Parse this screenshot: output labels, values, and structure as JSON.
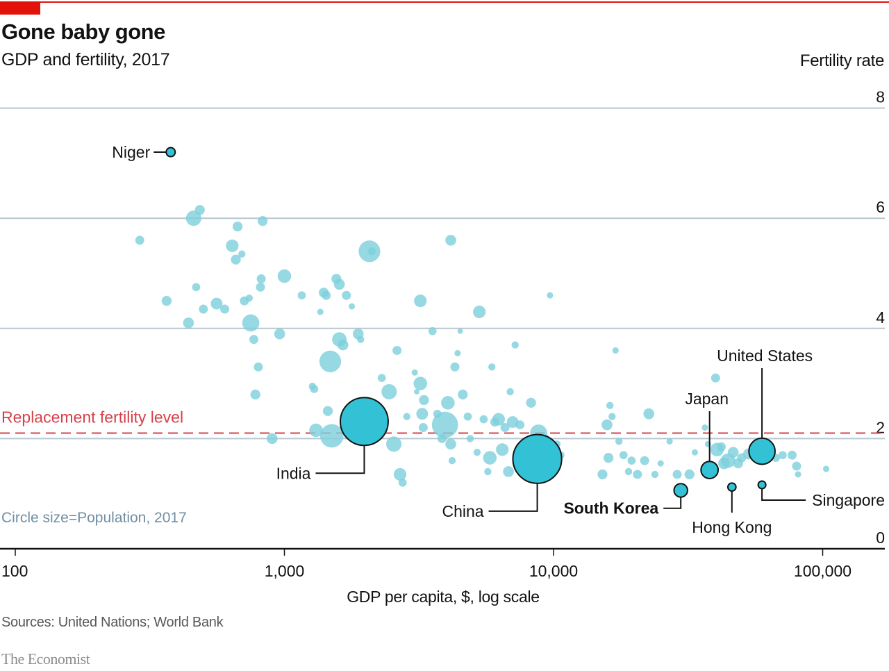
{
  "header": {
    "title": "Gone baby gone",
    "subtitle": "GDP and fertility, 2017",
    "y_axis_title": "Fertility rate"
  },
  "footer": {
    "x_axis_title": "GDP per capita, $, log scale",
    "source": "Sources: United Nations; World Bank",
    "brand": "The Economist"
  },
  "colors": {
    "brand_red": "#e3120b",
    "bubble_highlight": "#33c1d5",
    "bubble_background": "#7dcfdc",
    "replacement_line": "#d7404a",
    "gridline": "#b7c6cf",
    "size_note": "#6f8ea3"
  },
  "chart_data": {
    "type": "scatter",
    "title": "Gone baby gone",
    "subtitle": "GDP and fertility, 2017",
    "xlabel": "GDP per capita, $, log scale",
    "ylabel": "Fertility rate",
    "x_scale": "log",
    "xlim": [
      100,
      170000
    ],
    "ylim": [
      0,
      8
    ],
    "x_ticks": [
      {
        "value": 100,
        "label": "100"
      },
      {
        "value": 1000,
        "label": "1,000"
      },
      {
        "value": 10000,
        "label": "10,000"
      },
      {
        "value": 100000,
        "label": "100,000"
      }
    ],
    "y_ticks": [
      {
        "value": 0,
        "label": "0"
      },
      {
        "value": 2,
        "label": "2"
      },
      {
        "value": 4,
        "label": "4"
      },
      {
        "value": 6,
        "label": "6"
      },
      {
        "value": 8,
        "label": "8"
      }
    ],
    "grid": "horizontal",
    "reference_line": {
      "value": 2.1,
      "label": "Replacement fertility level"
    },
    "size_note": "Circle size=Population, 2017",
    "highlighted": [
      {
        "name": "Niger",
        "gdp": 378,
        "fertility": 7.2,
        "size": 1.0,
        "label_side": "left"
      },
      {
        "name": "India",
        "gdp": 1980,
        "fertility": 2.31,
        "size": 5.3,
        "label_side": "below-left"
      },
      {
        "name": "China",
        "gdp": 8700,
        "fertility": 1.63,
        "size": 5.4,
        "label_side": "below-left"
      },
      {
        "name": "South Korea",
        "gdp": 29700,
        "fertility": 1.06,
        "size": 1.5,
        "label_side": "below-left",
        "bold": true
      },
      {
        "name": "Japan",
        "gdp": 38000,
        "fertility": 1.43,
        "size": 1.9,
        "label_side": "above"
      },
      {
        "name": "Hong Kong",
        "gdp": 46000,
        "fertility": 1.12,
        "size": 0.9,
        "label_side": "below"
      },
      {
        "name": "United States",
        "gdp": 59500,
        "fertility": 1.77,
        "size": 2.9,
        "label_side": "above"
      },
      {
        "name": "Singapore",
        "gdp": 59500,
        "fertility": 1.16,
        "size": 0.85,
        "label_side": "below-right"
      }
    ],
    "others": [
      [
        290,
        5.6,
        1.0
      ],
      [
        365,
        4.5,
        1.1
      ],
      [
        440,
        4.1,
        1.2
      ],
      [
        460,
        6.0,
        1.7
      ],
      [
        485,
        6.15,
        1.1
      ],
      [
        470,
        4.75,
        0.9
      ],
      [
        500,
        4.35,
        1.0
      ],
      [
        560,
        4.45,
        1.3
      ],
      [
        600,
        4.35,
        1.0
      ],
      [
        640,
        5.5,
        1.4
      ],
      [
        660,
        5.25,
        1.1
      ],
      [
        670,
        5.85,
        1.1
      ],
      [
        695,
        5.35,
        0.8
      ],
      [
        710,
        4.5,
        1.0
      ],
      [
        740,
        4.55,
        0.8
      ],
      [
        750,
        4.1,
        1.9
      ],
      [
        770,
        3.8,
        1.0
      ],
      [
        780,
        2.8,
        1.1
      ],
      [
        800,
        3.3,
        1.0
      ],
      [
        820,
        4.9,
        1.0
      ],
      [
        815,
        4.75,
        1.0
      ],
      [
        830,
        5.95,
        1.1
      ],
      [
        900,
        2.0,
        1.2
      ],
      [
        960,
        3.9,
        1.2
      ],
      [
        1000,
        4.95,
        1.5
      ],
      [
        1160,
        4.6,
        0.9
      ],
      [
        1270,
        2.95,
        0.8
      ],
      [
        1290,
        2.9,
        0.9
      ],
      [
        1310,
        2.15,
        1.5
      ],
      [
        1360,
        4.3,
        0.7
      ],
      [
        1400,
        4.65,
        1.1
      ],
      [
        1430,
        4.6,
        1.0
      ],
      [
        1450,
        2.5,
        1.1
      ],
      [
        1480,
        3.4,
        2.4
      ],
      [
        1500,
        2.05,
        2.6
      ],
      [
        1560,
        4.9,
        1.1
      ],
      [
        1600,
        4.8,
        1.2
      ],
      [
        1600,
        3.8,
        1.6
      ],
      [
        1650,
        3.7,
        1.2
      ],
      [
        1700,
        4.6,
        1.0
      ],
      [
        1780,
        4.4,
        0.7
      ],
      [
        1880,
        3.9,
        1.2
      ],
      [
        1920,
        3.8,
        0.8
      ],
      [
        2070,
        5.4,
        2.4
      ],
      [
        2110,
        5.4,
        0.9
      ],
      [
        2300,
        3.1,
        0.9
      ],
      [
        2450,
        2.85,
        1.7
      ],
      [
        2550,
        1.9,
        1.7
      ],
      [
        2620,
        3.6,
        1.0
      ],
      [
        2690,
        1.35,
        1.4
      ],
      [
        2750,
        1.2,
        0.9
      ],
      [
        2850,
        2.4,
        0.8
      ],
      [
        3050,
        3.2,
        0.7
      ],
      [
        3100,
        2.85,
        0.6
      ],
      [
        3200,
        4.5,
        1.4
      ],
      [
        3200,
        3.0,
        1.5
      ],
      [
        3250,
        2.45,
        1.3
      ],
      [
        3280,
        2.2,
        1.0
      ],
      [
        3300,
        2.7,
        1.1
      ],
      [
        3550,
        3.95,
        0.9
      ],
      [
        3700,
        2.45,
        0.9
      ],
      [
        3850,
        2.0,
        1.0
      ],
      [
        3950,
        2.25,
        2.9
      ],
      [
        4050,
        2.65,
        1.5
      ],
      [
        4150,
        1.9,
        1.2
      ],
      [
        4150,
        5.6,
        1.2
      ],
      [
        4200,
        1.6,
        0.8
      ],
      [
        4300,
        3.3,
        1.0
      ],
      [
        4400,
        3.55,
        0.7
      ],
      [
        4500,
        3.95,
        0.6
      ],
      [
        4600,
        2.8,
        1.1
      ],
      [
        4800,
        2.4,
        0.9
      ],
      [
        4900,
        2.0,
        0.8
      ],
      [
        5200,
        1.75,
        0.8
      ],
      [
        5300,
        4.3,
        1.4
      ],
      [
        5500,
        2.35,
        0.9
      ],
      [
        5700,
        1.4,
        0.8
      ],
      [
        5800,
        1.65,
        1.5
      ],
      [
        5900,
        3.3,
        0.8
      ],
      [
        6050,
        2.3,
        1.0
      ],
      [
        6250,
        2.35,
        1.4
      ],
      [
        6450,
        1.8,
        1.4
      ],
      [
        6600,
        2.2,
        1.0
      ],
      [
        6800,
        1.4,
        1.2
      ],
      [
        6900,
        2.85,
        0.8
      ],
      [
        7050,
        2.3,
        1.3
      ],
      [
        7200,
        3.7,
        0.8
      ],
      [
        7500,
        2.25,
        1.0
      ],
      [
        7850,
        1.65,
        1.0
      ],
      [
        8250,
        2.65,
        1.1
      ],
      [
        8800,
        2.1,
        1.9
      ],
      [
        9200,
        1.95,
        1.6
      ],
      [
        9700,
        4.6,
        0.7
      ],
      [
        10000,
        1.75,
        1.1
      ],
      [
        10300,
        1.9,
        0.8
      ],
      [
        10600,
        1.7,
        0.9
      ],
      [
        15200,
        1.35,
        1.1
      ],
      [
        15800,
        2.25,
        1.2
      ],
      [
        16000,
        1.65,
        1.1
      ],
      [
        16200,
        2.6,
        0.8
      ],
      [
        16500,
        2.4,
        0.8
      ],
      [
        17000,
        3.6,
        0.7
      ],
      [
        17500,
        1.95,
        0.8
      ],
      [
        18200,
        1.7,
        0.9
      ],
      [
        19000,
        1.4,
        0.8
      ],
      [
        19500,
        1.6,
        0.9
      ],
      [
        20500,
        1.35,
        1.0
      ],
      [
        21800,
        1.6,
        1.0
      ],
      [
        22600,
        2.45,
        1.2
      ],
      [
        23800,
        1.35,
        0.8
      ],
      [
        25000,
        1.55,
        0.7
      ],
      [
        27000,
        1.95,
        0.7
      ],
      [
        28800,
        1.35,
        1.0
      ],
      [
        32000,
        1.35,
        1.1
      ],
      [
        33500,
        1.75,
        0.7
      ],
      [
        36500,
        2.2,
        0.7
      ],
      [
        37500,
        1.9,
        0.7
      ],
      [
        40000,
        3.1,
        1.0
      ],
      [
        40500,
        1.8,
        1.5
      ],
      [
        42000,
        1.85,
        1.0
      ],
      [
        43000,
        1.55,
        1.3
      ],
      [
        44500,
        1.6,
        1.6
      ],
      [
        46500,
        1.75,
        1.2
      ],
      [
        48500,
        1.55,
        1.1
      ],
      [
        50000,
        1.65,
        1.0
      ],
      [
        53000,
        1.72,
        1.2
      ],
      [
        64000,
        1.75,
        1.0
      ],
      [
        67000,
        1.65,
        0.9
      ],
      [
        71000,
        1.7,
        0.9
      ],
      [
        77000,
        1.7,
        1.0
      ],
      [
        80000,
        1.5,
        1.0
      ],
      [
        81000,
        1.35,
        0.7
      ],
      [
        103000,
        1.45,
        0.7
      ]
    ]
  }
}
